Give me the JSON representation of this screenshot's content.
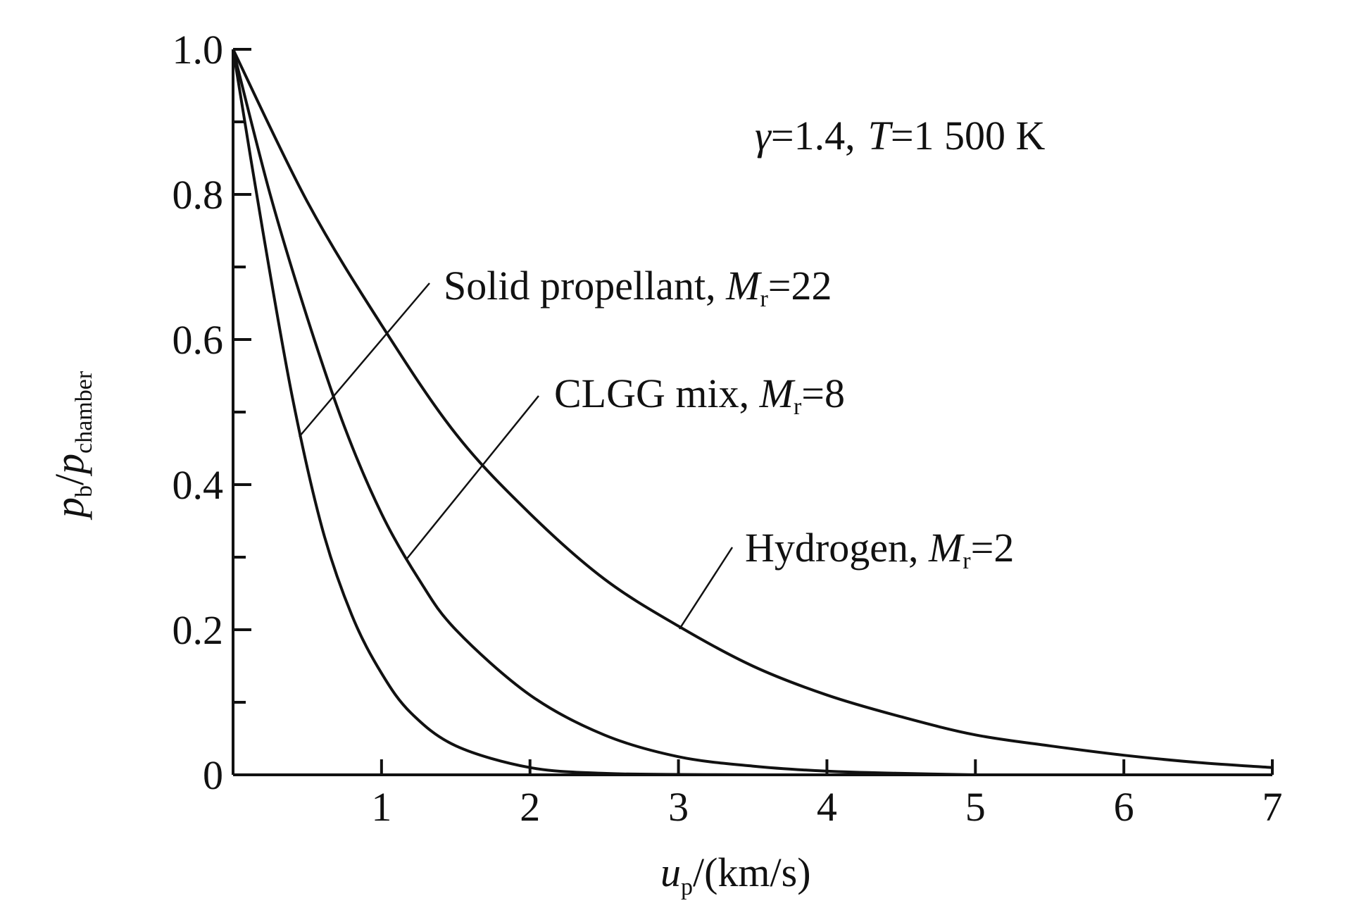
{
  "chart_data": {
    "type": "line",
    "xlabel": {
      "var": "u",
      "sub": "p",
      "rest": "/(km/s)"
    },
    "ylabel": {
      "var1": "p",
      "sub1": "b",
      "slash": "/",
      "var2": "p",
      "sub2": "chamber"
    },
    "xlim": [
      0,
      7
    ],
    "ylim": [
      0,
      1.0
    ],
    "x_ticks": [
      1,
      2,
      3,
      4,
      5,
      6,
      7
    ],
    "x_tick_labels": [
      "1",
      "2",
      "3",
      "4",
      "5",
      "6",
      "7"
    ],
    "y_ticks": [
      0,
      0.2,
      0.4,
      0.6,
      0.8,
      1.0
    ],
    "y_tick_labels": [
      "0",
      "0.2",
      "0.4",
      "0.6",
      "0.8",
      "1.0"
    ],
    "y_minor_ticks": [
      0.1,
      0.3,
      0.5,
      0.7,
      0.9
    ],
    "grid": false,
    "conditions": {
      "gamma_sym": "γ",
      "gamma_val": "=1.4,",
      "t_sym": "T",
      "t_val": "=1 500 K"
    },
    "series": [
      {
        "name": "Hydrogen",
        "label": {
          "text": "Hydrogen, ",
          "var": "M",
          "sub": "r",
          "val": "=2"
        },
        "x": [
          0,
          0.5,
          1.0,
          1.5,
          2.0,
          2.5,
          3.0,
          3.5,
          4.0,
          4.5,
          5.0,
          5.5,
          6.0,
          6.5,
          7.0
        ],
        "y": [
          1.0,
          0.79,
          0.62,
          0.47,
          0.36,
          0.27,
          0.205,
          0.15,
          0.11,
          0.08,
          0.055,
          0.04,
          0.027,
          0.017,
          0.01
        ]
      },
      {
        "name": "CLGG mix",
        "label": {
          "text": "CLGG mix, ",
          "var": "M",
          "sub": "r",
          "val": "=8"
        },
        "x": [
          0,
          0.25,
          0.5,
          0.75,
          1.0,
          1.25,
          1.5,
          2.0,
          2.5,
          3.0,
          3.5,
          4.0,
          4.5,
          5.0
        ],
        "y": [
          1.0,
          0.8,
          0.63,
          0.48,
          0.36,
          0.27,
          0.2,
          0.11,
          0.055,
          0.025,
          0.012,
          0.005,
          0.002,
          0.0
        ]
      },
      {
        "name": "Solid propellant",
        "label": {
          "text": "Solid propellant, ",
          "var": "M",
          "sub": "r",
          "val": "=22"
        },
        "x": [
          0,
          0.2,
          0.4,
          0.6,
          0.8,
          1.0,
          1.2,
          1.5,
          2.0,
          2.5,
          3.0,
          3.5
        ],
        "y": [
          1.0,
          0.75,
          0.52,
          0.34,
          0.22,
          0.14,
          0.085,
          0.04,
          0.01,
          0.002,
          0.0005,
          0.0
        ]
      }
    ]
  }
}
